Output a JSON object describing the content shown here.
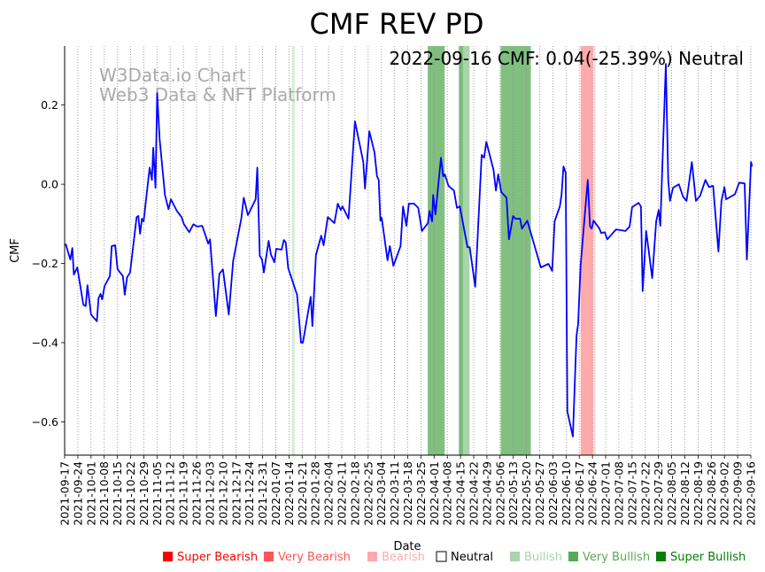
{
  "chart_data": {
    "type": "line",
    "title": "CMF REV PD",
    "xlabel": "Date",
    "ylabel": "CMF",
    "annotation": "2022-09-16 CMF: 0.04(-25.39%) Neutral",
    "watermark": [
      "W3Data.io Chart",
      "Web3 Data & NFT Platform"
    ],
    "x_unit": "days since 2021-09-17",
    "xlim": [
      0,
      364
    ],
    "ylim": [
      -0.684,
      0.349
    ],
    "grid": "vertical dotted at x ticks",
    "line_color": "#0000ff",
    "x_ticks": [
      0,
      7,
      14,
      21,
      28,
      35,
      42,
      49,
      56,
      63,
      70,
      77,
      84,
      91,
      98,
      105,
      112,
      119,
      126,
      133,
      140,
      147,
      154,
      161,
      168,
      175,
      182,
      189,
      196,
      203,
      210,
      217,
      224,
      231,
      238,
      245,
      252,
      259,
      266,
      273,
      280,
      287,
      294,
      301,
      308,
      315,
      322,
      329,
      336,
      343,
      350,
      357,
      364
    ],
    "x_tick_labels": [
      "2021-09-17",
      "2021-09-24",
      "2021-10-01",
      "2021-10-08",
      "2021-10-15",
      "2021-10-22",
      "2021-10-29",
      "2021-11-05",
      "2021-11-12",
      "2021-11-19",
      "2021-11-26",
      "2021-12-03",
      "2021-12-10",
      "2021-12-17",
      "2021-12-24",
      "2021-12-31",
      "2022-01-07",
      "2022-01-14",
      "2022-01-21",
      "2022-01-28",
      "2022-02-04",
      "2022-02-11",
      "2022-02-18",
      "2022-02-25",
      "2022-03-04",
      "2022-03-11",
      "2022-03-18",
      "2022-03-25",
      "2022-04-01",
      "2022-04-08",
      "2022-04-15",
      "2022-04-22",
      "2022-04-29",
      "2022-05-06",
      "2022-05-13",
      "2022-05-20",
      "2022-05-27",
      "2022-06-03",
      "2022-06-10",
      "2022-06-17",
      "2022-06-24",
      "2022-07-01",
      "2022-07-08",
      "2022-07-15",
      "2022-07-22",
      "2022-07-29",
      "2022-08-05",
      "2022-08-12",
      "2022-08-19",
      "2022-08-26",
      "2022-09-02",
      "2022-09-09",
      "2022-09-16"
    ],
    "y_ticks": [
      0.2,
      0.0,
      -0.2,
      -0.4,
      -0.6
    ],
    "y_tick_labels": [
      "0.2",
      "0.0",
      "−0.2",
      "−0.4",
      "−0.6"
    ],
    "bands": [
      {
        "x0": 120.6,
        "x1": 122.0,
        "color": "#d5ead5",
        "label": "Bullish"
      },
      {
        "x0": 192.6,
        "x1": 201.6,
        "color": "#80bf80",
        "label": "Very Bullish"
      },
      {
        "x0": 209.1,
        "x1": 211.5,
        "color": "#80bf80",
        "label": "Very Bullish"
      },
      {
        "x0": 211.5,
        "x1": 214.8,
        "color": "#aad4aa",
        "label": "Bullish"
      },
      {
        "x0": 231.3,
        "x1": 247.3,
        "color": "#80bf80",
        "label": "Very Bullish"
      },
      {
        "x0": 273.7,
        "x1": 280.3,
        "color": "#ffaaaa",
        "label": "Bearish"
      },
      {
        "x0": 280.3,
        "x1": 281.7,
        "color": "#ffd5d5",
        "label": "Bearish"
      }
    ],
    "series": [
      {
        "name": "CMF",
        "x": [
          0.5,
          3.0,
          4.1,
          4.9,
          6.7,
          9.9,
          11.2,
          12.1,
          14.0,
          17.1,
          18.0,
          19.0,
          19.9,
          21.2,
          24.0,
          25.0,
          26.8,
          28.1,
          30.9,
          31.9,
          33.1,
          34.7,
          38.2,
          39.1,
          40.0,
          41.0,
          41.9,
          45.1,
          46.3,
          47.0,
          48.2,
          49.1,
          50.4,
          53.2,
          55.1,
          56.4,
          59.5,
          62.0,
          63.3,
          66.1,
          68.3,
          70.2,
          73.0,
          76.2,
          77.1,
          80.2,
          82.1,
          84.0,
          87.1,
          89.4,
          93.7,
          95.0,
          97.2,
          101.3,
          102.2,
          103.5,
          104.7,
          105.7,
          108.2,
          109.4,
          111.3,
          112.2,
          115.1,
          116.3,
          117.3,
          118.6,
          123.3,
          125.4,
          126.4,
          130.5,
          131.4,
          133.3,
          136.1,
          137.4,
          139.6,
          143.1,
          144.9,
          146.5,
          147.4,
          150.6,
          154.0,
          158.4,
          159.3,
          161.6,
          164.4,
          165.7,
          166.6,
          167.5,
          168.2,
          171.3,
          172.5,
          174.4,
          178.2,
          179.5,
          181.3,
          182.6,
          185.4,
          187.6,
          189.5,
          192.7,
          193.6,
          194.9,
          195.5,
          196.7,
          199.6,
          200.8,
          201.7,
          203.6,
          206.5,
          208.1,
          209.6,
          213.7,
          214.9,
          217.8,
          221.2,
          222.5,
          223.7,
          227.5,
          228.8,
          230.0,
          231.6,
          234.4,
          235.7,
          237.9,
          239.1,
          241.6,
          242.6,
          245.4,
          252.6,
          256.7,
          258.6,
          259.9,
          262.7,
          263.6,
          264.6,
          265.8,
          266.7,
          269.6,
          271.5,
          272.4,
          273.7,
          277.5,
          278.7,
          279.6,
          280.6,
          283.7,
          284.6,
          286.5,
          287.8,
          292.5,
          297.5,
          299.7,
          301.0,
          304.4,
          305.7,
          306.6,
          308.5,
          311.7,
          313.8,
          315.1,
          316.0,
          318.9,
          320.2,
          321.1,
          322.7,
          325.8,
          328.0,
          329.9,
          332.7,
          334.9,
          337.1,
          339.9,
          341.8,
          344.0,
          346.8,
          348.4,
          350.0,
          350.9,
          355.6,
          357.8,
          360.7,
          361.9,
          364.1,
          364.7
        ],
        "y": [
          -0.15,
          -0.19,
          -0.161,
          -0.228,
          -0.21,
          -0.304,
          -0.308,
          -0.255,
          -0.329,
          -0.346,
          -0.288,
          -0.277,
          -0.291,
          -0.257,
          -0.232,
          -0.156,
          -0.154,
          -0.215,
          -0.232,
          -0.279,
          -0.235,
          -0.223,
          -0.083,
          -0.08,
          -0.125,
          -0.087,
          -0.094,
          0.042,
          0.011,
          0.092,
          -0.009,
          0.23,
          0.114,
          -0.027,
          -0.063,
          -0.038,
          -0.067,
          -0.083,
          -0.101,
          -0.121,
          -0.101,
          -0.107,
          -0.105,
          -0.15,
          -0.139,
          -0.333,
          -0.226,
          -0.215,
          -0.329,
          -0.194,
          -0.087,
          -0.034,
          -0.078,
          -0.038,
          0.042,
          -0.181,
          -0.19,
          -0.223,
          -0.143,
          -0.177,
          -0.197,
          -0.163,
          -0.165,
          -0.141,
          -0.147,
          -0.212,
          -0.279,
          -0.4,
          -0.4,
          -0.284,
          -0.358,
          -0.179,
          -0.13,
          -0.154,
          -0.083,
          -0.098,
          -0.049,
          -0.065,
          -0.056,
          -0.087,
          0.159,
          0.056,
          -0.011,
          0.134,
          0.08,
          0.02,
          0.011,
          -0.092,
          -0.085,
          -0.192,
          -0.156,
          -0.206,
          -0.156,
          -0.056,
          -0.105,
          -0.049,
          -0.049,
          -0.06,
          -0.118,
          -0.098,
          -0.067,
          -0.094,
          -0.027,
          -0.076,
          0.067,
          0.02,
          0.025,
          -0.004,
          -0.016,
          -0.06,
          -0.056,
          -0.159,
          -0.159,
          -0.259,
          0.074,
          0.067,
          0.107,
          0.036,
          -0.016,
          0.025,
          -0.02,
          -0.034,
          -0.139,
          -0.08,
          -0.087,
          -0.087,
          -0.112,
          -0.092,
          -0.21,
          -0.201,
          -0.219,
          -0.094,
          -0.056,
          -0.027,
          0.045,
          0.029,
          -0.574,
          -0.637,
          -0.384,
          -0.351,
          -0.206,
          0.011,
          -0.107,
          -0.112,
          -0.092,
          -0.112,
          -0.123,
          -0.121,
          -0.139,
          -0.114,
          -0.118,
          -0.107,
          -0.058,
          -0.047,
          -0.056,
          -0.27,
          -0.118,
          -0.237,
          -0.094,
          -0.065,
          -0.105,
          0.304,
          0.011,
          -0.042,
          -0.009,
          0.0,
          -0.031,
          -0.042,
          0.056,
          -0.042,
          -0.029,
          0.011,
          -0.007,
          -0.004,
          -0.17,
          -0.042,
          -0.007,
          -0.038,
          -0.025,
          0.004,
          0.002,
          -0.19,
          0.056,
          0.045
        ]
      }
    ],
    "legend": {
      "placement": "bottom-center",
      "items": [
        {
          "label": "Super Bearish",
          "color": "#ff0000",
          "text_color": "#ff0000"
        },
        {
          "label": "Very Bearish",
          "color": "#ff5555",
          "text_color": "#ff5555"
        },
        {
          "label": "Bearish",
          "color": "#ffaaaa",
          "text_color": "#ffaaaa"
        },
        {
          "label": "Neutral",
          "color": "#ffffff",
          "text_color": "#000000"
        },
        {
          "label": "Bullish",
          "color": "#aad4aa",
          "text_color": "#aad4aa"
        },
        {
          "label": "Very Bullish",
          "color": "#55aa55",
          "text_color": "#55aa55"
        },
        {
          "label": "Super Bullish",
          "color": "#008000",
          "text_color": "#008000"
        }
      ]
    }
  }
}
